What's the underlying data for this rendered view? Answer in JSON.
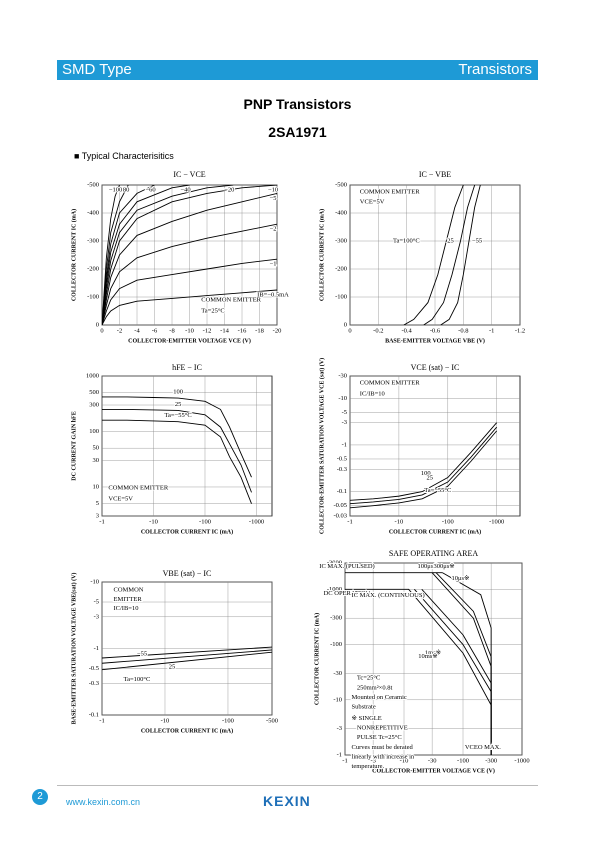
{
  "header": {
    "left": "SMD Type",
    "right": "Transistors"
  },
  "title": "PNP  Transistors",
  "part": "2SA1971",
  "section": "■  Typical  Characterisitics",
  "footer": {
    "page": "2",
    "url": "www.kexin.com.cn",
    "logo": "KEXIN"
  },
  "chart_data": [
    {
      "type": "line",
      "title": "IC − VCE",
      "xlabel": "COLLECTOR-EMITTER VOLTAGE   VCE   (V)",
      "ylabel": "COLLECTOR CURRENT   IC   (mA)",
      "xlim": [
        0,
        -20
      ],
      "ylim": [
        0,
        -500
      ],
      "xticks": [
        0,
        -2,
        -4,
        -6,
        -8,
        -10,
        -12,
        -14,
        -16,
        -18,
        -20
      ],
      "yticks": [
        0,
        -100,
        -200,
        -300,
        -400,
        -500
      ],
      "xlog": false,
      "ylog": false,
      "grid": true,
      "color": "#000000",
      "annotations": [
        "COMMON EMITTER",
        "Ta=25°C"
      ],
      "series": [
        {
          "name": "IB=−0.5mA",
          "x": [
            0,
            -0.5,
            -1,
            -2,
            -4,
            -8,
            -12,
            -16,
            -20
          ],
          "values": [
            0,
            -30,
            -50,
            -70,
            -85,
            -95,
            -105,
            -115,
            -125
          ]
        },
        {
          "name": "−1",
          "x": [
            0,
            -0.5,
            -1,
            -2,
            -4,
            -8,
            -12,
            -16,
            -20
          ],
          "values": [
            0,
            -50,
            -90,
            -130,
            -160,
            -180,
            -200,
            -220,
            -235
          ]
        },
        {
          "name": "−2",
          "x": [
            0,
            -0.5,
            -1,
            -2,
            -4,
            -8,
            -12,
            -16,
            -20
          ],
          "values": [
            0,
            -70,
            -130,
            -190,
            -240,
            -280,
            -310,
            -335,
            -360
          ]
        },
        {
          "name": "−5",
          "x": [
            0,
            -0.5,
            -1,
            -2,
            -4,
            -8,
            -12,
            -16,
            -20
          ],
          "values": [
            0,
            -90,
            -170,
            -250,
            -320,
            -370,
            -410,
            -440,
            -470
          ]
        },
        {
          "name": "−10",
          "x": [
            0,
            -0.5,
            -1,
            -2,
            -4,
            -8,
            -12,
            -16,
            -20
          ],
          "values": [
            0,
            -110,
            -200,
            -300,
            -380,
            -440,
            -470,
            -490,
            -500
          ]
        },
        {
          "name": "−20",
          "x": [
            0,
            -0.5,
            -1,
            -2,
            -4,
            -8,
            -12,
            -15
          ],
          "values": [
            0,
            -130,
            -230,
            -330,
            -410,
            -460,
            -490,
            -500
          ]
        },
        {
          "name": "−40",
          "x": [
            0,
            -0.5,
            -1,
            -2,
            -4,
            -8,
            -10
          ],
          "values": [
            0,
            -150,
            -260,
            -360,
            -440,
            -490,
            -500
          ]
        },
        {
          "name": "−60",
          "x": [
            0,
            -0.5,
            -1,
            -2,
            -4,
            -6
          ],
          "values": [
            0,
            -170,
            -290,
            -400,
            -470,
            -500
          ]
        },
        {
          "name": "−80",
          "x": [
            0,
            -0.5,
            -1,
            -2,
            -3
          ],
          "values": [
            0,
            -200,
            -330,
            -440,
            -500
          ]
        },
        {
          "name": "−100",
          "x": [
            0,
            -0.5,
            -1,
            -1.5,
            -2
          ],
          "values": [
            0,
            -240,
            -380,
            -460,
            -500
          ]
        }
      ]
    },
    {
      "type": "line",
      "title": "IC − VBE",
      "xlabel": "BASE-EMITTER VOLTAGE   VBE   (V)",
      "ylabel": "COLLECTOR CURRENT   IC   (mA)",
      "xlim": [
        0,
        -1.2
      ],
      "ylim": [
        0,
        -500
      ],
      "xticks": [
        0,
        -0.2,
        -0.4,
        -0.6,
        -0.8,
        -1,
        -1.2
      ],
      "yticks": [
        0,
        -100,
        -200,
        -300,
        -400,
        -500
      ],
      "xlog": false,
      "ylog": false,
      "grid": true,
      "color": "#000000",
      "annotations": [
        "COMMON EMITTER",
        "VCE=5V"
      ],
      "series": [
        {
          "name": "Ta=100°C",
          "x": [
            -0.38,
            -0.45,
            -0.55,
            -0.62,
            -0.68,
            -0.74,
            -0.8
          ],
          "values": [
            0,
            -20,
            -80,
            -180,
            -300,
            -420,
            -500
          ]
        },
        {
          "name": "25",
          "x": [
            -0.52,
            -0.58,
            -0.66,
            -0.72,
            -0.78,
            -0.83,
            -0.88
          ],
          "values": [
            0,
            -20,
            -80,
            -180,
            -300,
            -420,
            -500
          ]
        },
        {
          "name": "−55",
          "x": [
            -0.64,
            -0.7,
            -0.76,
            -0.8,
            -0.84,
            -0.88,
            -0.92
          ],
          "values": [
            0,
            -20,
            -80,
            -180,
            -300,
            -420,
            -500
          ]
        }
      ]
    },
    {
      "type": "line",
      "title": "hFE − IC",
      "xlabel": "COLLECTOR CURRENT   IC   (mA)",
      "ylabel": "DC CURRENT GAIN   hFE",
      "xlim": [
        -1,
        -2000
      ],
      "ylim": [
        3,
        1000
      ],
      "xticks": [
        -1,
        -10,
        -100,
        -1000
      ],
      "yticks": [
        3,
        5,
        10,
        30,
        50,
        100,
        300,
        500,
        1000
      ],
      "xlog": true,
      "ylog": true,
      "grid": true,
      "color": "#000000",
      "annotations": [
        "COMMON EMITTER",
        "VCE=5V"
      ],
      "series": [
        {
          "name": "100",
          "x": [
            -1,
            -3,
            -10,
            -30,
            -100,
            -200,
            -300,
            -500,
            -800
          ],
          "values": [
            420,
            420,
            410,
            400,
            350,
            250,
            120,
            40,
            15
          ]
        },
        {
          "name": "25",
          "x": [
            -1,
            -3,
            -10,
            -30,
            -100,
            -200,
            -300,
            -500,
            -800
          ],
          "values": [
            250,
            250,
            245,
            240,
            200,
            120,
            60,
            25,
            8
          ]
        },
        {
          "name": "Ta=−55°C",
          "x": [
            -1,
            -3,
            -10,
            -30,
            -100,
            -200,
            -300,
            -500,
            -800
          ],
          "values": [
            160,
            160,
            155,
            150,
            130,
            80,
            35,
            15,
            5
          ]
        }
      ]
    },
    {
      "type": "line",
      "title": "VCE (sat) − IC",
      "xlabel": "COLLECTOR CURRENT   IC   (mA)",
      "ylabel": "COLLECTOR-EMITTER SATURATION VOLTAGE  VCE (sat)  (V)",
      "xlim": [
        -1,
        -3000
      ],
      "ylim": [
        -0.03,
        -30
      ],
      "xticks": [
        -1,
        -10,
        -100,
        -1000
      ],
      "yticks": [
        -0.03,
        -0.05,
        -0.1,
        -0.3,
        -0.5,
        -1,
        -3,
        -5,
        -10,
        -30
      ],
      "xlog": true,
      "ylog": true,
      "grid": true,
      "color": "#000000",
      "annotations": [
        "COMMON EMITTER",
        "IC/IB=10"
      ],
      "series": [
        {
          "name": "100",
          "x": [
            -1,
            -3,
            -10,
            -30,
            -100,
            -300,
            -1000
          ],
          "values": [
            -0.065,
            -0.07,
            -0.08,
            -0.1,
            -0.2,
            -0.7,
            -3
          ]
        },
        {
          "name": "25",
          "x": [
            -1,
            -3,
            -10,
            -30,
            -100,
            -300,
            -1000
          ],
          "values": [
            -0.055,
            -0.06,
            -0.068,
            -0.085,
            -0.16,
            -0.55,
            -2.4
          ]
        },
        {
          "name": "Ta=−55°C",
          "x": [
            -1,
            -3,
            -10,
            -30,
            -100,
            -300,
            -1000
          ],
          "values": [
            -0.045,
            -0.05,
            -0.057,
            -0.07,
            -0.13,
            -0.45,
            -2
          ]
        }
      ]
    },
    {
      "type": "line",
      "title": "VBE (sat) − IC",
      "xlabel": "COLLECTOR CURRENT   IC   (mA)",
      "ylabel": "BASE-EMITTER SATURATION VOLTAGE  VBE(sat)  (V)",
      "xlim": [
        -1,
        -500
      ],
      "ylim": [
        -0.1,
        -10
      ],
      "xticks": [
        -1,
        -10,
        -100,
        -500
      ],
      "yticks": [
        -0.1,
        -0.3,
        -0.5,
        -1,
        -3,
        -5,
        -10
      ],
      "xlog": true,
      "ylog": true,
      "grid": true,
      "color": "#000000",
      "annotations": [
        "COMMON",
        "EMITTER",
        "IC/IB=10"
      ],
      "series": [
        {
          "name": "−55",
          "x": [
            -1,
            -500
          ],
          "values": [
            -0.72,
            -1.05
          ]
        },
        {
          "name": "25",
          "x": [
            -1,
            -500
          ],
          "values": [
            -0.6,
            -0.95
          ]
        },
        {
          "name": "Ta=100°C",
          "x": [
            -1,
            -500
          ],
          "values": [
            -0.48,
            -0.88
          ]
        }
      ]
    },
    {
      "type": "line",
      "title": "SAFE OPERATING AREA",
      "xlabel": "COLLECTOR-EMITTER VOLTAGE   VCE   (V)",
      "ylabel": "COLLECTOR CURRENT   IC   (mA)",
      "xlim": [
        -1,
        -1000
      ],
      "ylim": [
        -1,
        -3000
      ],
      "xticks": [
        -1,
        -3,
        -10,
        -30,
        -100,
        -300,
        -1000
      ],
      "yticks": [
        -1,
        -3,
        -10,
        -30,
        -100,
        -300,
        -1000,
        -3000
      ],
      "xlog": true,
      "ylog": true,
      "grid": true,
      "color": "#000000",
      "annotations": [
        "IC MAX. (CONTINUOUS)",
        "Tc=25°C",
        "250mm²×0.8t",
        "Mounted on Ceramic",
        "Substrate",
        "※ SINGLE",
        "NONREPETITIVE",
        "PULSE   Tc=25°C",
        "Curves must be derated",
        "linearly with increase in",
        "temperature.",
        "VCEO MAX."
      ],
      "series": [
        {
          "name": "IC MAX. (PULSED)",
          "x": [
            -1,
            -45
          ],
          "values": [
            -2000,
            -2000
          ]
        },
        {
          "name": "DC OPERATION",
          "x": [
            -1,
            -12,
            -100,
            -300,
            -300
          ],
          "values": [
            -1000,
            -1000,
            -70,
            -8,
            -1
          ]
        },
        {
          "name": "1ms※",
          "x": [
            -20,
            -100,
            -300,
            -300
          ],
          "values": [
            -1000,
            -150,
            -20,
            -1
          ]
        },
        {
          "name": "10ms※",
          "x": [
            -15,
            -100,
            -300,
            -300
          ],
          "values": [
            -1000,
            -100,
            -14,
            -1
          ]
        },
        {
          "name": "100μs※",
          "x": [
            -35,
            -150,
            -300,
            -300
          ],
          "values": [
            -2000,
            -400,
            -60,
            -1
          ]
        },
        {
          "name": "300μs※",
          "x": [
            -30,
            -150,
            -300,
            -300
          ],
          "values": [
            -2000,
            -300,
            -40,
            -1
          ]
        },
        {
          "name": "10μs※",
          "x": [
            -45,
            -200,
            -300,
            -300
          ],
          "values": [
            -2000,
            -800,
            -200,
            -1
          ]
        }
      ]
    }
  ]
}
